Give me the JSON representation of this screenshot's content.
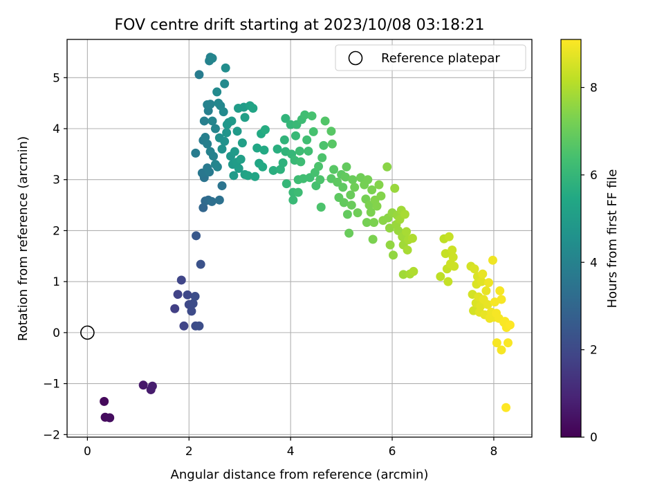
{
  "chart_data": {
    "type": "scatter",
    "title": "FOV centre drift starting at 2023/10/08 03:18:21",
    "xlabel": "Angular distance from reference (arcmin)",
    "ylabel": "Rotation from reference (arcmin)",
    "xlim": [
      -0.4,
      8.75
    ],
    "ylim": [
      -2.05,
      5.75
    ],
    "x_ticks": [
      0,
      2,
      4,
      6,
      8
    ],
    "y_ticks": [
      -2,
      -1,
      0,
      1,
      2,
      3,
      4,
      5
    ],
    "x_tick_labels": [
      "0",
      "2",
      "4",
      "6",
      "8"
    ],
    "y_tick_labels": [
      "−2",
      "−1",
      "0",
      "1",
      "2",
      "3",
      "4",
      "5"
    ],
    "grid": true,
    "legend": {
      "position": "top-right",
      "entries": [
        "Reference platepar"
      ]
    },
    "reference_point": {
      "x": 0,
      "y": 0,
      "label": "Reference platepar"
    },
    "colorbar": {
      "label": "Hours from first FF file",
      "range": [
        0,
        9.1
      ],
      "ticks": [
        0,
        2,
        4,
        6,
        8
      ],
      "tick_labels": [
        "0",
        "2",
        "4",
        "6",
        "8"
      ],
      "colormap": "viridis"
    },
    "points": [
      {
        "x": 0.33,
        "y": -1.35,
        "t": 0.2
      },
      {
        "x": 0.35,
        "y": -1.66,
        "t": 0.25
      },
      {
        "x": 0.44,
        "y": -1.67,
        "t": 0.3
      },
      {
        "x": 1.1,
        "y": -1.03,
        "t": 0.6
      },
      {
        "x": 1.25,
        "y": -1.12,
        "t": 0.7
      },
      {
        "x": 1.28,
        "y": -1.05,
        "t": 0.75
      },
      {
        "x": 1.72,
        "y": 0.47,
        "t": 1.7
      },
      {
        "x": 1.78,
        "y": 0.75,
        "t": 1.8
      },
      {
        "x": 1.85,
        "y": 1.03,
        "t": 1.9
      },
      {
        "x": 1.9,
        "y": 0.13,
        "t": 1.85
      },
      {
        "x": 1.97,
        "y": 0.74,
        "t": 1.95
      },
      {
        "x": 2.0,
        "y": 0.55,
        "t": 2.0
      },
      {
        "x": 2.05,
        "y": 0.42,
        "t": 2.05
      },
      {
        "x": 2.08,
        "y": 0.57,
        "t": 2.1
      },
      {
        "x": 2.12,
        "y": 0.71,
        "t": 2.15
      },
      {
        "x": 2.13,
        "y": 0.13,
        "t": 2.1
      },
      {
        "x": 2.2,
        "y": 0.13,
        "t": 2.15
      },
      {
        "x": 2.23,
        "y": 1.34,
        "t": 2.3
      },
      {
        "x": 2.14,
        "y": 1.9,
        "t": 2.5
      },
      {
        "x": 2.28,
        "y": 2.45,
        "t": 3.0
      },
      {
        "x": 2.32,
        "y": 2.58,
        "t": 3.1
      },
      {
        "x": 2.38,
        "y": 2.6,
        "t": 3.2
      },
      {
        "x": 2.45,
        "y": 2.57,
        "t": 3.3
      },
      {
        "x": 2.6,
        "y": 2.6,
        "t": 3.4
      },
      {
        "x": 2.65,
        "y": 2.88,
        "t": 3.5
      },
      {
        "x": 2.3,
        "y": 3.04,
        "t": 3.5
      },
      {
        "x": 2.26,
        "y": 3.13,
        "t": 3.6
      },
      {
        "x": 2.36,
        "y": 3.23,
        "t": 3.7
      },
      {
        "x": 2.4,
        "y": 3.15,
        "t": 3.7
      },
      {
        "x": 2.13,
        "y": 3.52,
        "t": 3.8
      },
      {
        "x": 2.28,
        "y": 3.77,
        "t": 3.8
      },
      {
        "x": 2.32,
        "y": 3.83,
        "t": 3.9
      },
      {
        "x": 2.36,
        "y": 3.7,
        "t": 3.9
      },
      {
        "x": 2.42,
        "y": 3.55,
        "t": 4.0
      },
      {
        "x": 2.48,
        "y": 3.46,
        "t": 4.0
      },
      {
        "x": 2.52,
        "y": 3.3,
        "t": 4.1
      },
      {
        "x": 2.56,
        "y": 3.25,
        "t": 4.1
      },
      {
        "x": 2.3,
        "y": 4.15,
        "t": 3.9
      },
      {
        "x": 2.38,
        "y": 4.35,
        "t": 3.9
      },
      {
        "x": 2.42,
        "y": 4.48,
        "t": 4.0
      },
      {
        "x": 2.36,
        "y": 4.47,
        "t": 4.0
      },
      {
        "x": 2.46,
        "y": 4.15,
        "t": 4.1
      },
      {
        "x": 2.52,
        "y": 4.0,
        "t": 4.1
      },
      {
        "x": 2.58,
        "y": 4.5,
        "t": 4.2
      },
      {
        "x": 2.62,
        "y": 4.45,
        "t": 4.2
      },
      {
        "x": 2.68,
        "y": 4.33,
        "t": 4.3
      },
      {
        "x": 2.55,
        "y": 4.72,
        "t": 4.3
      },
      {
        "x": 2.7,
        "y": 4.88,
        "t": 4.3
      },
      {
        "x": 2.72,
        "y": 5.19,
        "t": 4.4
      },
      {
        "x": 2.4,
        "y": 5.33,
        "t": 4.0
      },
      {
        "x": 2.42,
        "y": 5.4,
        "t": 4.0
      },
      {
        "x": 2.46,
        "y": 5.38,
        "t": 4.1
      },
      {
        "x": 2.2,
        "y": 5.06,
        "t": 3.8
      },
      {
        "x": 2.6,
        "y": 3.82,
        "t": 4.5
      },
      {
        "x": 2.65,
        "y": 3.6,
        "t": 4.6
      },
      {
        "x": 2.7,
        "y": 3.75,
        "t": 4.6
      },
      {
        "x": 2.74,
        "y": 3.92,
        "t": 4.7
      },
      {
        "x": 2.78,
        "y": 4.12,
        "t": 4.7
      },
      {
        "x": 2.82,
        "y": 3.46,
        "t": 4.8
      },
      {
        "x": 2.86,
        "y": 3.3,
        "t": 4.9
      },
      {
        "x": 2.9,
        "y": 3.55,
        "t": 4.9
      },
      {
        "x": 2.94,
        "y": 3.34,
        "t": 5.0
      },
      {
        "x": 2.98,
        "y": 3.22,
        "t": 5.0
      },
      {
        "x": 3.02,
        "y": 3.4,
        "t": 5.1
      },
      {
        "x": 3.05,
        "y": 3.72,
        "t": 5.1
      },
      {
        "x": 3.1,
        "y": 3.1,
        "t": 5.2
      },
      {
        "x": 3.16,
        "y": 3.08,
        "t": 5.3
      },
      {
        "x": 2.88,
        "y": 3.08,
        "t": 4.9
      },
      {
        "x": 2.95,
        "y": 3.95,
        "t": 4.9
      },
      {
        "x": 2.97,
        "y": 4.4,
        "t": 5.0
      },
      {
        "x": 3.08,
        "y": 4.42,
        "t": 5.0
      },
      {
        "x": 3.1,
        "y": 4.22,
        "t": 5.1
      },
      {
        "x": 3.2,
        "y": 4.45,
        "t": 5.2
      },
      {
        "x": 3.26,
        "y": 4.4,
        "t": 5.3
      },
      {
        "x": 2.84,
        "y": 4.15,
        "t": 4.9
      },
      {
        "x": 2.75,
        "y": 4.08,
        "t": 4.8
      },
      {
        "x": 3.3,
        "y": 3.06,
        "t": 5.3
      },
      {
        "x": 3.34,
        "y": 3.62,
        "t": 5.4
      },
      {
        "x": 3.38,
        "y": 3.32,
        "t": 5.4
      },
      {
        "x": 3.45,
        "y": 3.25,
        "t": 5.5
      },
      {
        "x": 3.48,
        "y": 3.58,
        "t": 5.5
      },
      {
        "x": 3.42,
        "y": 3.9,
        "t": 5.5
      },
      {
        "x": 3.5,
        "y": 3.98,
        "t": 5.6
      },
      {
        "x": 3.66,
        "y": 3.18,
        "t": 5.7
      },
      {
        "x": 3.74,
        "y": 3.6,
        "t": 5.7
      },
      {
        "x": 3.8,
        "y": 3.2,
        "t": 5.8
      },
      {
        "x": 3.85,
        "y": 3.33,
        "t": 5.8
      },
      {
        "x": 3.88,
        "y": 3.78,
        "t": 5.9
      },
      {
        "x": 3.9,
        "y": 3.55,
        "t": 5.9
      },
      {
        "x": 3.9,
        "y": 4.2,
        "t": 5.9
      },
      {
        "x": 3.92,
        "y": 2.92,
        "t": 6.0
      },
      {
        "x": 4.0,
        "y": 4.08,
        "t": 6.0
      },
      {
        "x": 4.02,
        "y": 3.5,
        "t": 6.0
      },
      {
        "x": 4.05,
        "y": 2.75,
        "t": 6.1
      },
      {
        "x": 4.08,
        "y": 3.38,
        "t": 6.1
      },
      {
        "x": 4.1,
        "y": 3.86,
        "t": 6.1
      },
      {
        "x": 4.12,
        "y": 4.08,
        "t": 6.1
      },
      {
        "x": 4.15,
        "y": 3.0,
        "t": 6.2
      },
      {
        "x": 4.18,
        "y": 3.56,
        "t": 6.2
      },
      {
        "x": 4.2,
        "y": 3.35,
        "t": 6.2
      },
      {
        "x": 4.22,
        "y": 4.18,
        "t": 6.2
      },
      {
        "x": 4.25,
        "y": 3.02,
        "t": 6.3
      },
      {
        "x": 4.28,
        "y": 4.27,
        "t": 6.3
      },
      {
        "x": 4.32,
        "y": 3.78,
        "t": 6.3
      },
      {
        "x": 4.35,
        "y": 3.56,
        "t": 6.3
      },
      {
        "x": 4.38,
        "y": 3.04,
        "t": 6.3
      },
      {
        "x": 4.42,
        "y": 4.25,
        "t": 6.4
      },
      {
        "x": 4.45,
        "y": 3.94,
        "t": 6.4
      },
      {
        "x": 4.48,
        "y": 3.14,
        "t": 6.4
      },
      {
        "x": 4.5,
        "y": 2.88,
        "t": 6.4
      },
      {
        "x": 4.55,
        "y": 3.26,
        "t": 6.5
      },
      {
        "x": 4.58,
        "y": 3.0,
        "t": 6.5
      },
      {
        "x": 4.6,
        "y": 2.46,
        "t": 6.5
      },
      {
        "x": 4.62,
        "y": 3.43,
        "t": 6.5
      },
      {
        "x": 4.65,
        "y": 3.67,
        "t": 6.5
      },
      {
        "x": 4.68,
        "y": 4.15,
        "t": 6.6
      },
      {
        "x": 4.05,
        "y": 2.6,
        "t": 6.1
      },
      {
        "x": 4.15,
        "y": 2.75,
        "t": 6.2
      },
      {
        "x": 4.8,
        "y": 3.95,
        "t": 6.7
      },
      {
        "x": 4.82,
        "y": 3.7,
        "t": 6.7
      },
      {
        "x": 4.85,
        "y": 3.2,
        "t": 6.7
      },
      {
        "x": 4.8,
        "y": 3.02,
        "t": 6.7
      },
      {
        "x": 4.92,
        "y": 2.95,
        "t": 6.8
      },
      {
        "x": 4.95,
        "y": 2.65,
        "t": 6.8
      },
      {
        "x": 5.0,
        "y": 3.1,
        "t": 6.8
      },
      {
        "x": 5.03,
        "y": 2.85,
        "t": 6.8
      },
      {
        "x": 5.05,
        "y": 2.55,
        "t": 6.9
      },
      {
        "x": 5.08,
        "y": 3.05,
        "t": 6.9
      },
      {
        "x": 5.1,
        "y": 3.25,
        "t": 6.9
      },
      {
        "x": 5.12,
        "y": 2.32,
        "t": 6.9
      },
      {
        "x": 5.15,
        "y": 1.95,
        "t": 7.0
      },
      {
        "x": 5.18,
        "y": 2.7,
        "t": 7.0
      },
      {
        "x": 5.2,
        "y": 2.5,
        "t": 7.0
      },
      {
        "x": 5.22,
        "y": 3.0,
        "t": 7.0
      },
      {
        "x": 5.26,
        "y": 2.85,
        "t": 7.1
      },
      {
        "x": 5.32,
        "y": 2.35,
        "t": 7.1
      },
      {
        "x": 5.38,
        "y": 3.04,
        "t": 7.1
      },
      {
        "x": 5.45,
        "y": 2.9,
        "t": 7.2
      },
      {
        "x": 5.48,
        "y": 2.62,
        "t": 7.2
      },
      {
        "x": 5.5,
        "y": 2.16,
        "t": 7.2
      },
      {
        "x": 5.52,
        "y": 3.0,
        "t": 7.2
      },
      {
        "x": 5.55,
        "y": 2.5,
        "t": 7.3
      },
      {
        "x": 5.58,
        "y": 2.36,
        "t": 7.3
      },
      {
        "x": 5.6,
        "y": 2.8,
        "t": 7.3
      },
      {
        "x": 5.62,
        "y": 1.83,
        "t": 7.3
      },
      {
        "x": 5.64,
        "y": 2.16,
        "t": 7.3
      },
      {
        "x": 5.66,
        "y": 2.6,
        "t": 7.4
      },
      {
        "x": 5.7,
        "y": 2.48,
        "t": 7.4
      },
      {
        "x": 5.74,
        "y": 2.9,
        "t": 7.4
      },
      {
        "x": 5.78,
        "y": 2.68,
        "t": 7.4
      },
      {
        "x": 5.82,
        "y": 2.2,
        "t": 7.5
      },
      {
        "x": 5.9,
        "y": 3.25,
        "t": 7.5
      },
      {
        "x": 5.92,
        "y": 2.25,
        "t": 7.5
      },
      {
        "x": 5.95,
        "y": 2.05,
        "t": 7.6
      },
      {
        "x": 5.96,
        "y": 1.72,
        "t": 7.6
      },
      {
        "x": 6.0,
        "y": 2.35,
        "t": 7.6
      },
      {
        "x": 6.02,
        "y": 1.52,
        "t": 7.6
      },
      {
        "x": 6.05,
        "y": 2.83,
        "t": 7.7
      },
      {
        "x": 6.08,
        "y": 2.12,
        "t": 7.7
      },
      {
        "x": 6.1,
        "y": 2.3,
        "t": 7.7
      },
      {
        "x": 6.12,
        "y": 2.0,
        "t": 7.7
      },
      {
        "x": 6.15,
        "y": 2.22,
        "t": 7.8
      },
      {
        "x": 6.18,
        "y": 2.4,
        "t": 7.8
      },
      {
        "x": 6.2,
        "y": 1.88,
        "t": 7.8
      },
      {
        "x": 6.22,
        "y": 1.72,
        "t": 7.8
      },
      {
        "x": 6.22,
        "y": 1.14,
        "t": 7.8
      },
      {
        "x": 6.25,
        "y": 2.32,
        "t": 7.9
      },
      {
        "x": 6.28,
        "y": 1.98,
        "t": 7.9
      },
      {
        "x": 6.3,
        "y": 1.62,
        "t": 7.9
      },
      {
        "x": 6.32,
        "y": 1.82,
        "t": 7.9
      },
      {
        "x": 6.35,
        "y": 1.15,
        "t": 7.9
      },
      {
        "x": 6.4,
        "y": 1.85,
        "t": 8.0
      },
      {
        "x": 6.42,
        "y": 1.2,
        "t": 8.0
      },
      {
        "x": 6.95,
        "y": 1.1,
        "t": 8.2
      },
      {
        "x": 7.02,
        "y": 1.84,
        "t": 8.2
      },
      {
        "x": 7.05,
        "y": 1.55,
        "t": 8.3
      },
      {
        "x": 7.08,
        "y": 1.25,
        "t": 8.3
      },
      {
        "x": 7.1,
        "y": 1.0,
        "t": 8.3
      },
      {
        "x": 7.12,
        "y": 1.88,
        "t": 8.3
      },
      {
        "x": 7.15,
        "y": 1.35,
        "t": 8.4
      },
      {
        "x": 7.18,
        "y": 1.62,
        "t": 8.4
      },
      {
        "x": 7.2,
        "y": 1.48,
        "t": 8.4
      },
      {
        "x": 7.22,
        "y": 1.3,
        "t": 8.4
      },
      {
        "x": 7.55,
        "y": 1.3,
        "t": 8.5
      },
      {
        "x": 7.58,
        "y": 0.75,
        "t": 8.5
      },
      {
        "x": 7.6,
        "y": 0.43,
        "t": 8.5
      },
      {
        "x": 7.62,
        "y": 1.25,
        "t": 8.6
      },
      {
        "x": 7.65,
        "y": 0.58,
        "t": 8.6
      },
      {
        "x": 7.66,
        "y": 0.95,
        "t": 8.6
      },
      {
        "x": 7.68,
        "y": 1.1,
        "t": 8.6
      },
      {
        "x": 7.7,
        "y": 0.7,
        "t": 8.7
      },
      {
        "x": 7.72,
        "y": 0.4,
        "t": 8.7
      },
      {
        "x": 7.74,
        "y": 0.52,
        "t": 8.7
      },
      {
        "x": 7.76,
        "y": 1.0,
        "t": 8.7
      },
      {
        "x": 7.78,
        "y": 1.15,
        "t": 8.8
      },
      {
        "x": 7.8,
        "y": 0.65,
        "t": 8.8
      },
      {
        "x": 7.82,
        "y": 0.35,
        "t": 8.8
      },
      {
        "x": 7.85,
        "y": 0.82,
        "t": 8.8
      },
      {
        "x": 7.88,
        "y": 0.55,
        "t": 8.8
      },
      {
        "x": 7.9,
        "y": 0.98,
        "t": 8.9
      },
      {
        "x": 7.92,
        "y": 0.28,
        "t": 8.9
      },
      {
        "x": 7.95,
        "y": 0.4,
        "t": 8.9
      },
      {
        "x": 7.98,
        "y": 1.42,
        "t": 8.9
      },
      {
        "x": 8.0,
        "y": 0.3,
        "t": 8.9
      },
      {
        "x": 8.02,
        "y": 0.6,
        "t": 9.0
      },
      {
        "x": 8.05,
        "y": 0.38,
        "t": 9.0
      },
      {
        "x": 8.06,
        "y": -0.2,
        "t": 9.0
      },
      {
        "x": 8.1,
        "y": 0.28,
        "t": 9.0
      },
      {
        "x": 8.12,
        "y": 0.82,
        "t": 9.0
      },
      {
        "x": 8.15,
        "y": -0.34,
        "t": 9.0
      },
      {
        "x": 8.15,
        "y": 0.65,
        "t": 9.0
      },
      {
        "x": 8.2,
        "y": 0.2,
        "t": 9.05
      },
      {
        "x": 8.22,
        "y": 0.22,
        "t": 9.05
      },
      {
        "x": 8.25,
        "y": 0.1,
        "t": 9.05
      },
      {
        "x": 8.28,
        "y": -0.2,
        "t": 9.05
      },
      {
        "x": 8.32,
        "y": 0.15,
        "t": 9.1
      },
      {
        "x": 8.24,
        "y": -1.47,
        "t": 9.1
      }
    ]
  }
}
